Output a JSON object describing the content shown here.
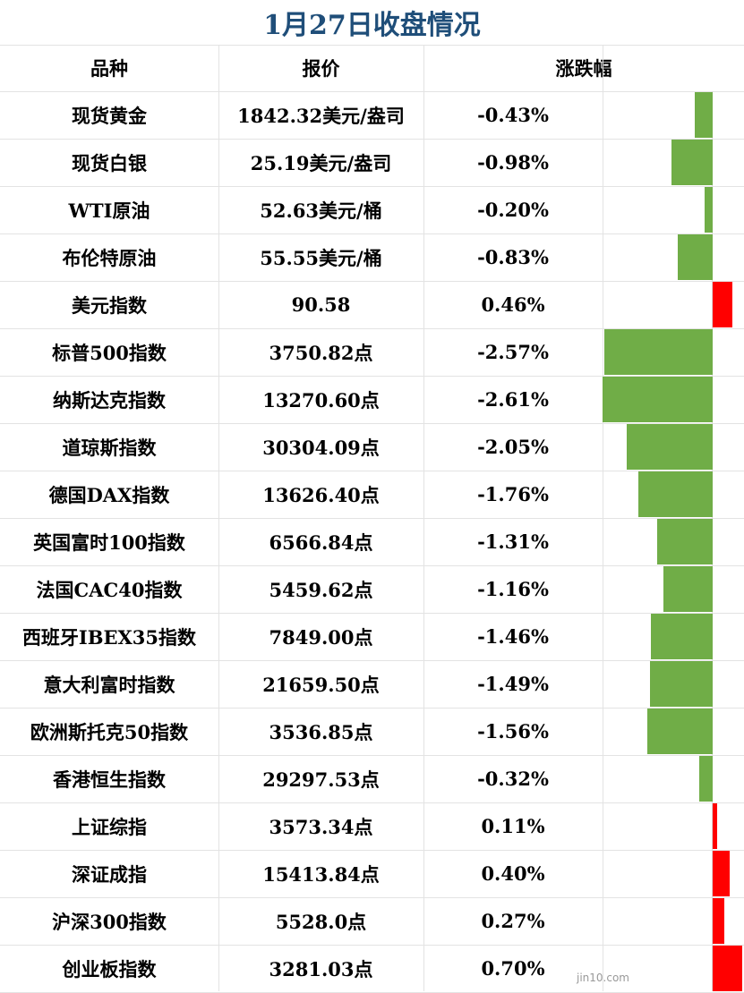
{
  "title": "1月27日收盘情况",
  "headers": {
    "name": "品种",
    "price": "报价",
    "change": "涨跌幅"
  },
  "watermark": "jin10.com",
  "colors": {
    "title": "#1f4e79",
    "negative": "#70ad47",
    "positive": "#ff0000"
  },
  "chart_data": {
    "type": "table",
    "title": "1月27日收盘情况",
    "columns": [
      "品种",
      "报价",
      "涨跌幅"
    ],
    "rows": [
      {
        "name": "现货黄金",
        "price": "1842.32美元/盎司",
        "change_label": "-0.43%",
        "change": -0.43
      },
      {
        "name": "现货白银",
        "price": "25.19美元/盎司",
        "change_label": "-0.98%",
        "change": -0.98
      },
      {
        "name": "WTI原油",
        "price": "52.63美元/桶",
        "change_label": "-0.20%",
        "change": -0.2
      },
      {
        "name": "布伦特原油",
        "price": "55.55美元/桶",
        "change_label": "-0.83%",
        "change": -0.83
      },
      {
        "name": "美元指数",
        "price": "90.58",
        "change_label": "0.46%",
        "change": 0.46
      },
      {
        "name": "标普500指数",
        "price": "3750.82点",
        "change_label": "-2.57%",
        "change": -2.57
      },
      {
        "name": "纳斯达克指数",
        "price": "13270.60点",
        "change_label": "-2.61%",
        "change": -2.61
      },
      {
        "name": "道琼斯指数",
        "price": "30304.09点",
        "change_label": "-2.05%",
        "change": -2.05
      },
      {
        "name": "德国DAX指数",
        "price": "13626.40点",
        "change_label": "-1.76%",
        "change": -1.76
      },
      {
        "name": "英国富时100指数",
        "price": "6566.84点",
        "change_label": "-1.31%",
        "change": -1.31
      },
      {
        "name": "法国CAC40指数",
        "price": "5459.62点",
        "change_label": "-1.16%",
        "change": -1.16
      },
      {
        "name": "西班牙IBEX35指数",
        "price": "7849.00点",
        "change_label": "-1.46%",
        "change": -1.46
      },
      {
        "name": "意大利富时指数",
        "price": "21659.50点",
        "change_label": "-1.49%",
        "change": -1.49
      },
      {
        "name": "欧洲斯托克50指数",
        "price": "3536.85点",
        "change_label": "-1.56%",
        "change": -1.56
      },
      {
        "name": "香港恒生指数",
        "price": "29297.53点",
        "change_label": "-0.32%",
        "change": -0.32
      },
      {
        "name": "上证综指",
        "price": "3573.34点",
        "change_label": "0.11%",
        "change": 0.11
      },
      {
        "name": "深证成指",
        "price": "15413.84点",
        "change_label": "0.40%",
        "change": 0.4
      },
      {
        "name": "沪深300指数",
        "price": "5528.0点",
        "change_label": "0.27%",
        "change": 0.27
      },
      {
        "name": "创业板指数",
        "price": "3281.03点",
        "change_label": "0.70%",
        "change": 0.7
      }
    ]
  }
}
